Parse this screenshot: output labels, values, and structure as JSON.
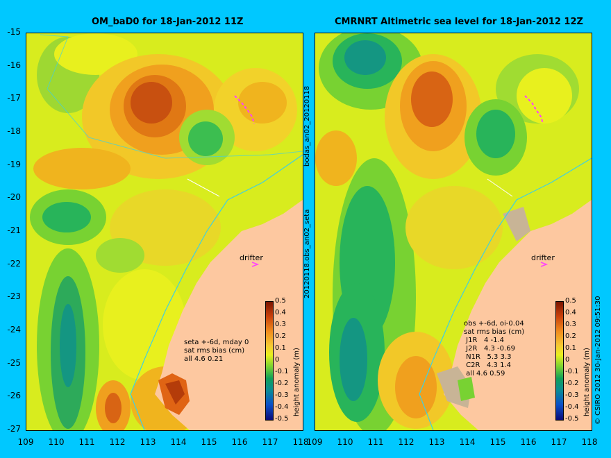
{
  "left_panel": {
    "title": "OM_baD0 for 18-Jan-2012 11Z",
    "annotation": "seta +-6d, mday 0\nsat rms bias (cm)\nall 4.6 0.21",
    "drifter_label": "drifter"
  },
  "right_panel": {
    "title": "CMRNRT Altimetric sea level  for 18-Jan-2012 12Z",
    "annotation": "obs +-6d, oi-0.04\nsat rms bias (cm)\n J1R   4 -1.4\n J2R   4.3 -0.69\n N1R   5.3 3.3\n C2R   4.3 1.4\n all 4.6 0.59",
    "drifter_label": "drifter"
  },
  "side_label_top": "bodas_an02_20120118",
  "side_label_bottom": "20120118.obs_an02_seta",
  "credit": "© CSIRO 2012  30-Jan-2012 09:51:30",
  "axes": {
    "y_ticks": [
      "-15",
      "-16",
      "-17",
      "-18",
      "-19",
      "-20",
      "-21",
      "-22",
      "-23",
      "-24",
      "-25",
      "-26",
      "-27"
    ],
    "x_ticks_left": [
      "109",
      "110",
      "111",
      "112",
      "113",
      "114",
      "115",
      "116",
      "117",
      "118"
    ],
    "x_ticks_right": [
      "109",
      "110",
      "111",
      "112",
      "113",
      "114",
      "115",
      "116",
      "117",
      "118"
    ]
  },
  "colorbar": {
    "label": "height anomaly (m)",
    "ticks": [
      "0.5",
      "0.4",
      "0.3",
      "0.2",
      "0.1",
      "0",
      "-0.1",
      "-0.2",
      "-0.3",
      "-0.4",
      "-0.5"
    ]
  },
  "colors": {
    "background": "#00c8ff",
    "land": "#fdc8a0",
    "coast_track": "#40d0e0",
    "drifter": "#ff40ff"
  }
}
